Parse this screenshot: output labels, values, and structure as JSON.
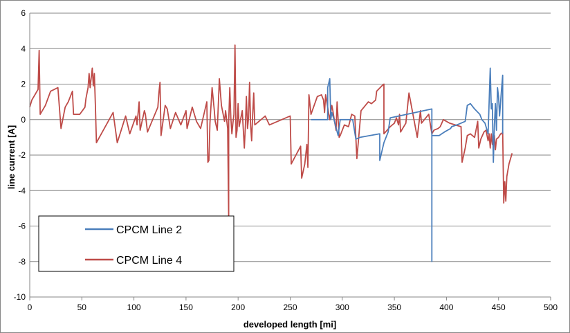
{
  "chart_data": {
    "type": "line",
    "xlabel": "developed length [mi]",
    "ylabel": "line  current [A]",
    "xlim": [
      0,
      500
    ],
    "ylim": [
      -10,
      6
    ],
    "xticks": [
      0,
      50,
      100,
      150,
      200,
      250,
      300,
      350,
      400,
      450,
      500
    ],
    "yticks": [
      6,
      4,
      2,
      0,
      -2,
      -4,
      -6,
      -8,
      -10
    ],
    "grid": "horizontal",
    "legend_position": "bottom-left",
    "series": [
      {
        "name": "CPCM Line 2",
        "color": "#4a7ebb",
        "points": [
          [
            270,
            0
          ],
          [
            275,
            0
          ],
          [
            279,
            0
          ],
          [
            283,
            0
          ],
          [
            286,
            0
          ],
          [
            286,
            1.8
          ],
          [
            288,
            2.3
          ],
          [
            289,
            0
          ],
          [
            290,
            0.4
          ],
          [
            292,
            0
          ],
          [
            296,
            -0.9
          ],
          [
            298,
            0
          ],
          [
            307,
            0
          ],
          [
            310,
            0
          ],
          [
            313,
            -1.1
          ],
          [
            317,
            -1.0
          ],
          [
            336,
            -0.8
          ],
          [
            336,
            -2.3
          ],
          [
            340,
            -1.3
          ],
          [
            344,
            -0.7
          ],
          [
            346,
            0.1
          ],
          [
            386,
            0.6
          ],
          [
            386,
            -8.0
          ],
          [
            386,
            -0.9
          ],
          [
            393,
            -0.9
          ],
          [
            398,
            -0.7
          ],
          [
            404,
            -0.5
          ],
          [
            405,
            -0.4
          ],
          [
            410,
            -0.3
          ],
          [
            418,
            -0.1
          ],
          [
            420,
            0.8
          ],
          [
            423,
            0.9
          ],
          [
            427,
            0.6
          ],
          [
            432,
            0.3
          ],
          [
            434,
            0
          ],
          [
            437,
            -0.2
          ],
          [
            440,
            -0.8
          ],
          [
            442,
            2.9
          ],
          [
            443,
            0.6
          ],
          [
            444,
            0.9
          ],
          [
            445,
            -2.4
          ],
          [
            446,
            -0.3
          ],
          [
            447,
            0.9
          ],
          [
            448,
            -0.6
          ],
          [
            449,
            1.8
          ],
          [
            450,
            1.3
          ],
          [
            451,
            0.2
          ],
          [
            453,
            1.8
          ],
          [
            454,
            2.5
          ],
          [
            454,
            -0.8
          ]
        ]
      },
      {
        "name": "CPCM Line 4",
        "color": "#be4b48",
        "points": [
          [
            0,
            0.7
          ],
          [
            2,
            1.1
          ],
          [
            4,
            1.3
          ],
          [
            8,
            1.7
          ],
          [
            9,
            3.9
          ],
          [
            10,
            0.3
          ],
          [
            15,
            0.8
          ],
          [
            20,
            1.6
          ],
          [
            27,
            1.8
          ],
          [
            30,
            -0.5
          ],
          [
            34,
            0.7
          ],
          [
            37,
            1.0
          ],
          [
            41,
            1.6
          ],
          [
            42,
            0.3
          ],
          [
            48,
            0.3
          ],
          [
            53,
            0.7
          ],
          [
            54,
            1.2
          ],
          [
            56,
            1.8
          ],
          [
            57,
            2.6
          ],
          [
            58,
            1.8
          ],
          [
            60,
            2.9
          ],
          [
            61,
            1.9
          ],
          [
            62,
            2.6
          ],
          [
            63,
            0.8
          ],
          [
            64,
            -1.3
          ],
          [
            80,
            0.4
          ],
          [
            84,
            -1.3
          ],
          [
            92,
            0.2
          ],
          [
            96,
            -0.8
          ],
          [
            102,
            0.2
          ],
          [
            103,
            -0.3
          ],
          [
            105,
            1.0
          ],
          [
            106,
            -0.6
          ],
          [
            110,
            0.5
          ],
          [
            111,
            0.3
          ],
          [
            113,
            -0.7
          ],
          [
            123,
            0.7
          ],
          [
            124,
            1.5
          ],
          [
            125,
            2.1
          ],
          [
            126,
            -0.9
          ],
          [
            130,
            0.8
          ],
          [
            132,
            0.6
          ],
          [
            135,
            -0.5
          ],
          [
            140,
            0.4
          ],
          [
            145,
            -0.3
          ],
          [
            150,
            0.5
          ],
          [
            151,
            -0.5
          ],
          [
            156,
            0.7
          ],
          [
            160,
            -0.1
          ],
          [
            164,
            -0.5
          ],
          [
            170,
            1.0
          ],
          [
            171,
            -2.4
          ],
          [
            172,
            -2.3
          ],
          [
            173,
            -0.2
          ],
          [
            175,
            1.8
          ],
          [
            177,
            0.6
          ],
          [
            178,
            -0.1
          ],
          [
            180,
            -0.6
          ],
          [
            182,
            2.3
          ],
          [
            184,
            0.8
          ],
          [
            187,
            -0.1
          ],
          [
            188,
            0.5
          ],
          [
            190,
            -0.5
          ],
          [
            191,
            -5.5
          ],
          [
            191,
            -0.1
          ],
          [
            192,
            1.8
          ],
          [
            193,
            0.1
          ],
          [
            194,
            -0.8
          ],
          [
            195,
            -0.2
          ],
          [
            196,
            0.3
          ],
          [
            197,
            4.2
          ],
          [
            198,
            -1.0
          ],
          [
            199,
            -0.6
          ],
          [
            200,
            0.9
          ],
          [
            201,
            -0.4
          ],
          [
            204,
            0.5
          ],
          [
            206,
            -1.6
          ],
          [
            207,
            -0.4
          ],
          [
            208,
            1.3
          ],
          [
            209,
            -0.5
          ],
          [
            210,
            0.1
          ],
          [
            211,
            2.1
          ],
          [
            212,
            -0.3
          ],
          [
            213,
            -1.2
          ],
          [
            214,
            0.3
          ],
          [
            215,
            1.5
          ],
          [
            216,
            -0.3
          ],
          [
            222,
            0
          ],
          [
            226,
            0.2
          ],
          [
            230,
            -0.3
          ],
          [
            250,
            0.2
          ],
          [
            251,
            -2.5
          ],
          [
            260,
            -1.5
          ],
          [
            261,
            -3.3
          ],
          [
            264,
            -2.5
          ],
          [
            266,
            -1.4
          ],
          [
            267,
            -2.7
          ],
          [
            268,
            1.4
          ],
          [
            270,
            0.3
          ],
          [
            276,
            1.3
          ],
          [
            280,
            1.4
          ],
          [
            282,
            1.1
          ],
          [
            283,
            0.4
          ],
          [
            284,
            1.4
          ],
          [
            288,
            0
          ],
          [
            290,
            0.8
          ],
          [
            291,
            0.5
          ],
          [
            292,
            0.1
          ],
          [
            294,
            -0.6
          ],
          [
            295,
            1.0
          ],
          [
            297,
            -1.0
          ],
          [
            298,
            -0.9
          ],
          [
            302,
            -0.3
          ],
          [
            306,
            -0.4
          ],
          [
            309,
            0.3
          ],
          [
            312,
            0.2
          ],
          [
            314,
            -2.2
          ],
          [
            318,
            0.5
          ],
          [
            325,
            1.0
          ],
          [
            328,
            0.9
          ],
          [
            332,
            1.1
          ],
          [
            333,
            1.6
          ],
          [
            338,
            1.9
          ],
          [
            340,
            2.0
          ],
          [
            340,
            -0.8
          ],
          [
            346,
            -0.4
          ],
          [
            350,
            -0.2
          ],
          [
            352,
            0.1
          ],
          [
            354,
            -0.3
          ],
          [
            355,
            0.3
          ],
          [
            356,
            -0.7
          ],
          [
            358,
            -0.5
          ],
          [
            361,
            -0.2
          ],
          [
            364,
            1.5
          ],
          [
            372,
            -1.0
          ],
          [
            373,
            -0.5
          ],
          [
            375,
            0.5
          ],
          [
            376,
            -0.2
          ],
          [
            383,
            0.3
          ],
          [
            386,
            -0.8
          ],
          [
            388,
            -0.6
          ],
          [
            392,
            -0.5
          ],
          [
            394,
            -0.4
          ],
          [
            397,
            0
          ],
          [
            403,
            -0.2
          ],
          [
            414,
            -0.4
          ],
          [
            415,
            -2.4
          ],
          [
            418,
            -1.6
          ],
          [
            420,
            -0.9
          ],
          [
            423,
            -0.8
          ],
          [
            427,
            -1.0
          ],
          [
            430,
            -0.1
          ],
          [
            431,
            -1.6
          ],
          [
            433,
            -1.1
          ],
          [
            436,
            -0.7
          ],
          [
            438,
            -0.6
          ],
          [
            440,
            -1.2
          ],
          [
            441,
            -0.8
          ],
          [
            442,
            -1.6
          ],
          [
            443,
            -0.8
          ],
          [
            444,
            -1.4
          ],
          [
            446,
            -0.9
          ],
          [
            447,
            -1.7
          ],
          [
            448,
            -1.1
          ],
          [
            450,
            -1.0
          ],
          [
            451,
            -0.9
          ],
          [
            452,
            -0.8
          ],
          [
            453,
            -0.8
          ],
          [
            454,
            -0.7
          ],
          [
            455,
            -4.7
          ],
          [
            456,
            -3.5
          ],
          [
            457,
            -4.6
          ],
          [
            458,
            -3.2
          ],
          [
            460,
            -2.5
          ],
          [
            463,
            -1.9
          ]
        ]
      }
    ]
  }
}
